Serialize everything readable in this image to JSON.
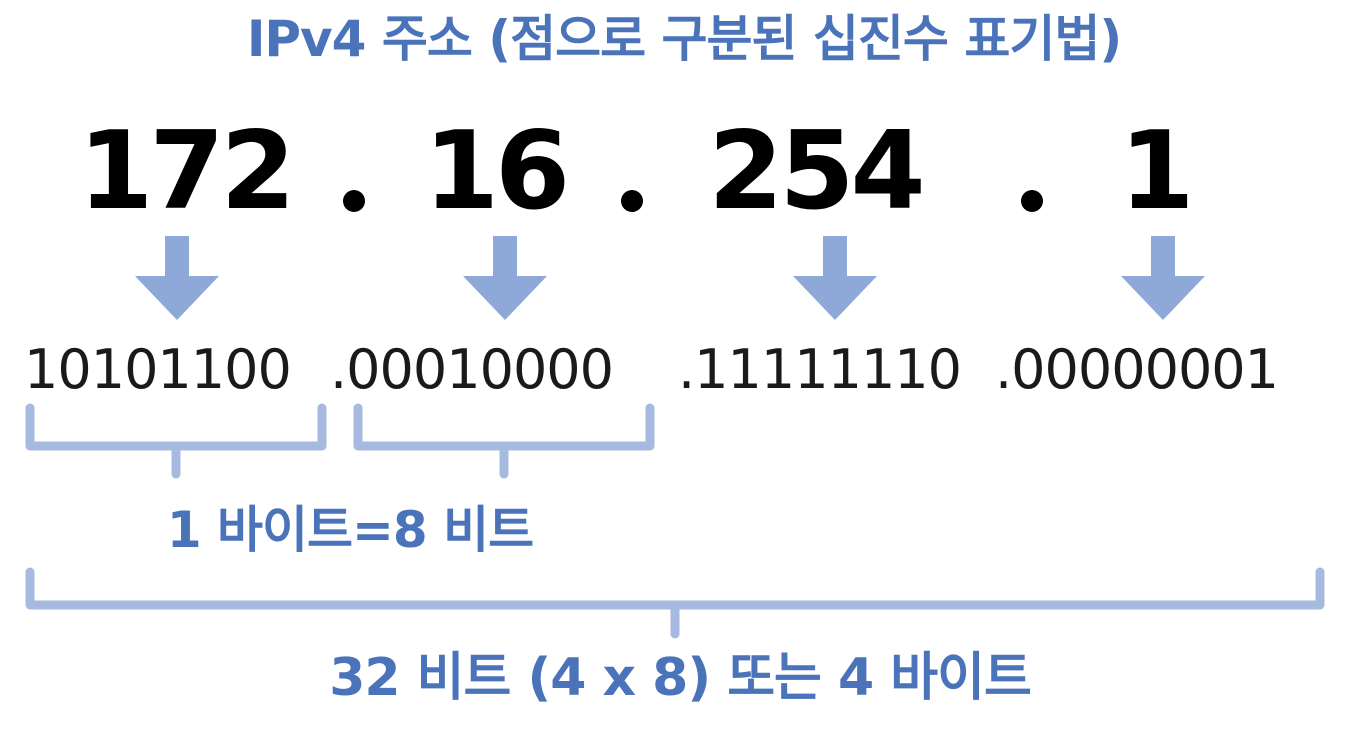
{
  "title": "IPv4 주소 (점으로 구분된 십진수 표기법)",
  "octets": [
    "172",
    "16",
    "254",
    "1"
  ],
  "binary": [
    "10101100",
    ".00010000",
    ".11111110",
    ".00000001"
  ],
  "byte_label": "1 바이트=8 비트",
  "total_label": "32 비트 (4 x 8) 또는 4 바이트",
  "colors": {
    "accent": "#4a73ba",
    "arrow": "#8ea8d8",
    "bracket": "#a6b9de",
    "octet_text": "#000000",
    "binary_text": "#1a1a1a"
  },
  "icons": {
    "arrow": "arrow-down-icon"
  }
}
